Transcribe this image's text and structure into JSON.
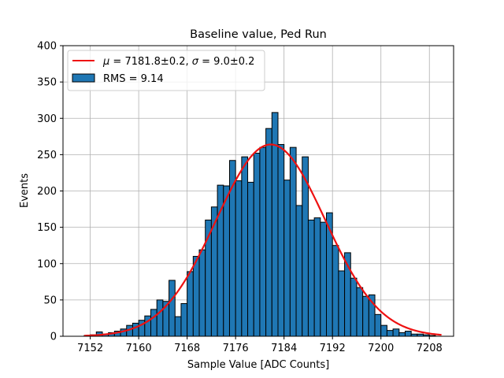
{
  "chart_data": {
    "type": "bar",
    "title": "Baseline value, Ped Run",
    "xlabel": "Sample Value [ADC Counts]",
    "ylabel": "Events",
    "xlim": [
      7147.5,
      7212
    ],
    "ylim": [
      0,
      400
    ],
    "xticks": [
      7152,
      7160,
      7168,
      7176,
      7184,
      7192,
      7200,
      7208
    ],
    "yticks": [
      0,
      50,
      100,
      150,
      200,
      250,
      300,
      350,
      400
    ],
    "grid": true,
    "legend_position": "top-left",
    "bin_width": 1,
    "bins_start": [
      7151,
      7152,
      7153,
      7154,
      7155,
      7156,
      7157,
      7158,
      7159,
      7160,
      7161,
      7162,
      7163,
      7164,
      7165,
      7166,
      7167,
      7168,
      7169,
      7170,
      7171,
      7172,
      7173,
      7174,
      7175,
      7176,
      7177,
      7178,
      7179,
      7180,
      7181,
      7182,
      7183,
      7184,
      7185,
      7186,
      7187,
      7188,
      7189,
      7190,
      7191,
      7192,
      7193,
      7194,
      7195,
      7196,
      7197,
      7198,
      7199,
      7200,
      7201,
      7202,
      7203,
      7204,
      7205,
      7206,
      7207,
      7208,
      7209
    ],
    "counts": [
      1,
      2,
      6,
      3,
      5,
      7,
      10,
      15,
      18,
      22,
      28,
      37,
      50,
      48,
      77,
      27,
      45,
      89,
      110,
      119,
      160,
      178,
      208,
      207,
      242,
      214,
      247,
      212,
      252,
      260,
      286,
      308,
      264,
      215,
      260,
      180,
      247,
      160,
      163,
      157,
      170,
      125,
      90,
      115,
      80,
      67,
      55,
      57,
      30,
      15,
      8,
      10,
      5,
      7,
      3,
      3,
      2,
      1,
      0
    ],
    "series": [
      {
        "name": "RMS = 9.14",
        "type": "histogram",
        "color": "#1f77b4"
      },
      {
        "name": "$\\mu = 7181.8 \\pm 0.2$, $\\sigma = 9.0 \\pm 0.2$",
        "type": "line",
        "color": "#ee1111",
        "mu": 7181.8,
        "sigma": 9.0,
        "amplitude": 264,
        "x_range": [
          7151,
          7210
        ]
      }
    ],
    "legend": {
      "fit_label_mu": "μ",
      "fit_label_mu_value": " = 7181.8±0.2, ",
      "fit_label_sigma": "σ",
      "fit_label_sigma_value": " = 9.0±0.2",
      "hist_label": "RMS = 9.14"
    }
  }
}
